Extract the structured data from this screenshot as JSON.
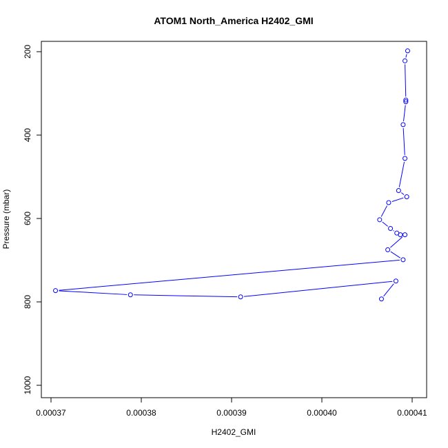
{
  "chart_data": {
    "type": "line",
    "title": "ATOM1 North_America H2402_GMI",
    "xlabel": "H2402_GMI",
    "ylabel": "Pressure (mbar)",
    "xlim": [
      0.00037,
      0.00041
    ],
    "ylim": [
      1000,
      200
    ],
    "y_reversed": true,
    "x_ticks": [
      "0.00037",
      "0.00038",
      "0.00039",
      "0.00040",
      "0.00041"
    ],
    "x_tick_values": [
      0.00037,
      0.00038,
      0.00039,
      0.0004,
      0.00041
    ],
    "y_ticks": [
      "200",
      "400",
      "600",
      "800",
      "1000"
    ],
    "y_tick_values": [
      200,
      400,
      600,
      800,
      1000
    ],
    "series_color": "#0000ff",
    "grid": false,
    "legend": "none",
    "series": [
      {
        "markers": "circle",
        "points": [
          {
            "x": 0.0004095,
            "y": 198
          },
          {
            "x": 0.0004092,
            "y": 222
          },
          {
            "x": 0.0004093,
            "y": 316
          },
          {
            "x": 0.0004093,
            "y": 320
          },
          {
            "x": 0.000409,
            "y": 375
          },
          {
            "x": 0.0004092,
            "y": 456
          },
          {
            "x": 0.0004085,
            "y": 533
          },
          {
            "x": 0.0004094,
            "y": 548
          },
          {
            "x": 0.0004074,
            "y": 562
          },
          {
            "x": 0.0004064,
            "y": 603
          },
          {
            "x": 0.0004076,
            "y": 624
          },
          {
            "x": 0.0004083,
            "y": 635
          },
          {
            "x": 0.0004087,
            "y": 639
          },
          {
            "x": 0.0004092,
            "y": 639
          },
          {
            "x": 0.0004073,
            "y": 675
          },
          {
            "x": 0.000409,
            "y": 699
          },
          {
            "x": 0.0003705,
            "y": 773
          },
          {
            "x": 0.0003788,
            "y": 783
          },
          {
            "x": 0.000391,
            "y": 788
          },
          {
            "x": 0.0004082,
            "y": 750
          },
          {
            "x": 0.0004066,
            "y": 793
          }
        ]
      }
    ]
  }
}
